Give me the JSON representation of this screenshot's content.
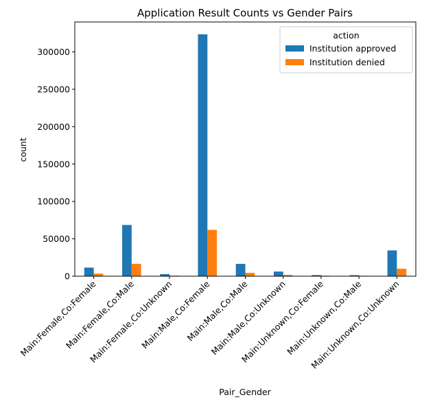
{
  "chart_data": {
    "type": "bar",
    "title": "Application Result Counts vs Gender Pairs",
    "xlabel": "Pair_Gender",
    "ylabel": "count",
    "ylim": [
      0,
      340000
    ],
    "yticks": [
      0,
      50000,
      100000,
      150000,
      200000,
      250000,
      300000
    ],
    "ytick_labels": [
      "0",
      "50000",
      "100000",
      "150000",
      "200000",
      "250000",
      "300000"
    ],
    "grid": false,
    "legend": {
      "title": "action",
      "placement": "top-right"
    },
    "categories": [
      "Main:Female,Co:Female",
      "Main:Female,Co:Male",
      "Main:Female,Co:Unknown",
      "Main:Male,Co:Female",
      "Main:Male,Co:Male",
      "Main:Male,Co:Unknown",
      "Main:Unknown,Co:Female",
      "Main:Unknown,Co:Male",
      "Main:Unknown,Co:Unknown"
    ],
    "series": [
      {
        "name": "Institution approved",
        "color": "#1f77b4",
        "values": [
          11500,
          68500,
          2800,
          323500,
          16500,
          6200,
          1500,
          1400,
          34500
        ]
      },
      {
        "name": "Institution denied",
        "color": "#ff7f0e",
        "values": [
          3500,
          16500,
          800,
          62000,
          4500,
          1700,
          700,
          600,
          10000
        ]
      }
    ]
  }
}
